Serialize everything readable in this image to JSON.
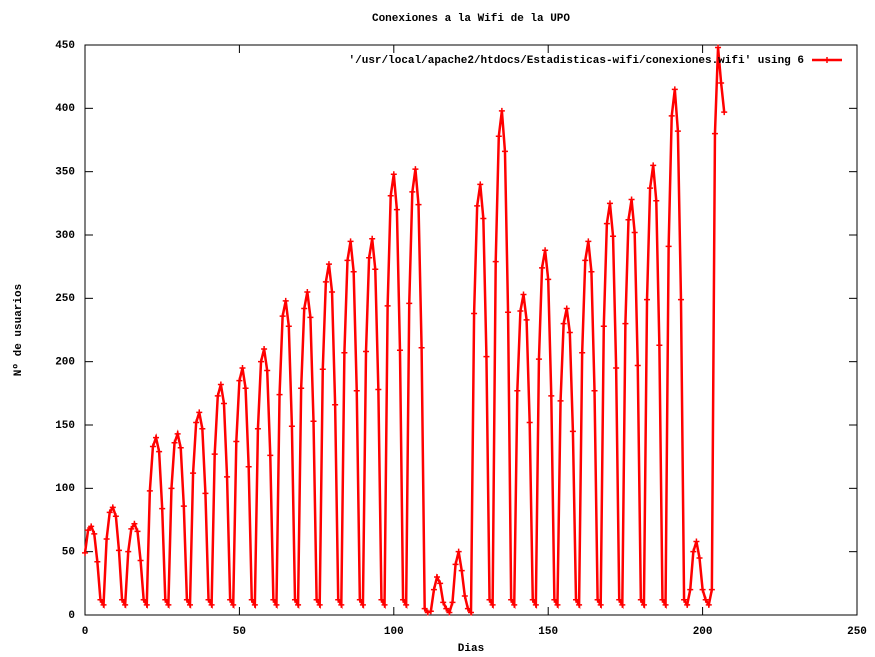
{
  "chart_data": {
    "type": "line",
    "title": "Conexiones a la Wifi de la UPO",
    "xlabel": "Dias",
    "ylabel": "Nº de usuarios",
    "legend": "top-right",
    "x": [
      0,
      1,
      2,
      3,
      4,
      5,
      6,
      7,
      8,
      9,
      10,
      11,
      12,
      13,
      14,
      15,
      16,
      17,
      18,
      19,
      20,
      21,
      22,
      23,
      24,
      25,
      26,
      27,
      28,
      29,
      30,
      31,
      32,
      33,
      34,
      35,
      36,
      37,
      38,
      39,
      40,
      41,
      42,
      43,
      44,
      45,
      46,
      47,
      48,
      49,
      50,
      51,
      52,
      53,
      54,
      55,
      56,
      57,
      58,
      59,
      60,
      61,
      62,
      63,
      64,
      65,
      66,
      67,
      68,
      69,
      70,
      71,
      72,
      73,
      74,
      75,
      76,
      77,
      78,
      79,
      80,
      81,
      82,
      83,
      84,
      85,
      86,
      87,
      88,
      89,
      90,
      91,
      92,
      93,
      94,
      95,
      96,
      97,
      98,
      99,
      100,
      101,
      102,
      103,
      104,
      105,
      106,
      107,
      108,
      109,
      110,
      111,
      112,
      113,
      114,
      115,
      116,
      117,
      118,
      119,
      120,
      121,
      122,
      123,
      124,
      125,
      126,
      127,
      128,
      129,
      130,
      131,
      132,
      133,
      134,
      135,
      136,
      137,
      138,
      139,
      140,
      141,
      142,
      143,
      144,
      145,
      146,
      147,
      148,
      149,
      150,
      151,
      152,
      153,
      154,
      155,
      156,
      157,
      158,
      159,
      160,
      161,
      162,
      163,
      164,
      165,
      166,
      167,
      168,
      169,
      170,
      171,
      172,
      173,
      174,
      175,
      176,
      177,
      178,
      179,
      180,
      181,
      182,
      183,
      184,
      185,
      186,
      187,
      188,
      189,
      190,
      191,
      192,
      193,
      194,
      195,
      196,
      197,
      198,
      199,
      200,
      201,
      202,
      203,
      204,
      205,
      206,
      207
    ],
    "series": [
      {
        "name": "'/usr/local/apache2/htdocs/Estadisticas-wifi/conexiones.wifi' using 6",
        "color": "#ff0000",
        "values": [
          49,
          67,
          70,
          64,
          42,
          12,
          8,
          60,
          81,
          85,
          78,
          51,
          12,
          8,
          50,
          68,
          72,
          66,
          43,
          12,
          8,
          98,
          133,
          140,
          129,
          84,
          12,
          8,
          100,
          136,
          143,
          132,
          86,
          12,
          8,
          112,
          152,
          160,
          147,
          96,
          12,
          8,
          127,
          173,
          182,
          167,
          109,
          12,
          8,
          137,
          185,
          195,
          179,
          117,
          12,
          8,
          147,
          200,
          210,
          193,
          126,
          12,
          8,
          174,
          236,
          248,
          228,
          149,
          12,
          8,
          179,
          242,
          255,
          235,
          153,
          12,
          8,
          194,
          263,
          277,
          255,
          166,
          12,
          8,
          207,
          280,
          295,
          271,
          177,
          12,
          8,
          208,
          282,
          297,
          273,
          178,
          12,
          8,
          244,
          331,
          348,
          320,
          209,
          12,
          8,
          246,
          334,
          352,
          324,
          211,
          5,
          2,
          3,
          20,
          30,
          25,
          10,
          5,
          2,
          10,
          40,
          50,
          35,
          15,
          5,
          2,
          238,
          323,
          340,
          313,
          204,
          12,
          8,
          279,
          378,
          398,
          366,
          239,
          12,
          8,
          177,
          240,
          253,
          233,
          152,
          12,
          8,
          202,
          274,
          288,
          265,
          173,
          12,
          8,
          169,
          230,
          242,
          223,
          145,
          12,
          8,
          207,
          280,
          295,
          271,
          177,
          12,
          8,
          228,
          309,
          325,
          299,
          195,
          12,
          8,
          230,
          312,
          328,
          302,
          197,
          12,
          8,
          249,
          337,
          355,
          327,
          213,
          12,
          8,
          291,
          394,
          415,
          382,
          249,
          12,
          8,
          20,
          50,
          58,
          45,
          20,
          12,
          8,
          20,
          380,
          448,
          420,
          397
        ]
      }
    ],
    "xlim": [
      0,
      250
    ],
    "xticks": [
      0,
      50,
      100,
      150,
      200,
      250
    ],
    "ylim": [
      0,
      450
    ],
    "yticks": [
      0,
      50,
      100,
      150,
      200,
      250,
      300,
      350,
      400,
      450
    ]
  }
}
